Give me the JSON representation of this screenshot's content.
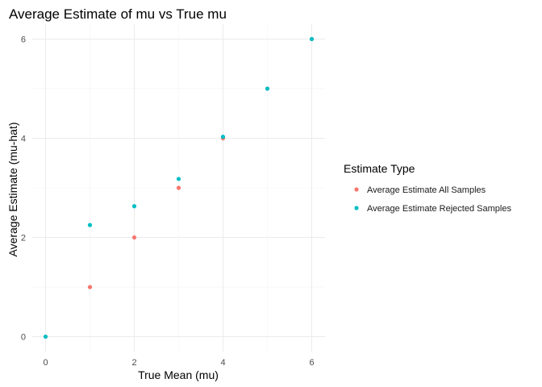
{
  "chart_data": {
    "type": "scatter",
    "title": "Average Estimate of mu vs True mu",
    "xlabel": "True Mean (mu)",
    "ylabel": "Average Estimate (mu-hat)",
    "xlim": [
      -0.3,
      6.3
    ],
    "ylim": [
      -0.3,
      6.3
    ],
    "xticks": [
      0,
      2,
      4,
      6
    ],
    "yticks": [
      0,
      2,
      4,
      6
    ],
    "grid": true,
    "legend": {
      "title": "Estimate Type",
      "position": "right"
    },
    "series": [
      {
        "name": "Average Estimate All Samples",
        "color": "#F8766D",
        "x": [
          0,
          1,
          2,
          3,
          4,
          5,
          6
        ],
        "y": [
          0.0,
          1.0,
          2.0,
          3.0,
          4.0,
          5.0,
          6.0
        ]
      },
      {
        "name": "Average Estimate Rejected Samples",
        "color": "#00BFC4",
        "x": [
          0,
          1,
          2,
          3,
          4,
          5,
          6
        ],
        "y": [
          0.0,
          2.25,
          2.63,
          3.18,
          4.03,
          5.0,
          6.0
        ]
      }
    ]
  }
}
